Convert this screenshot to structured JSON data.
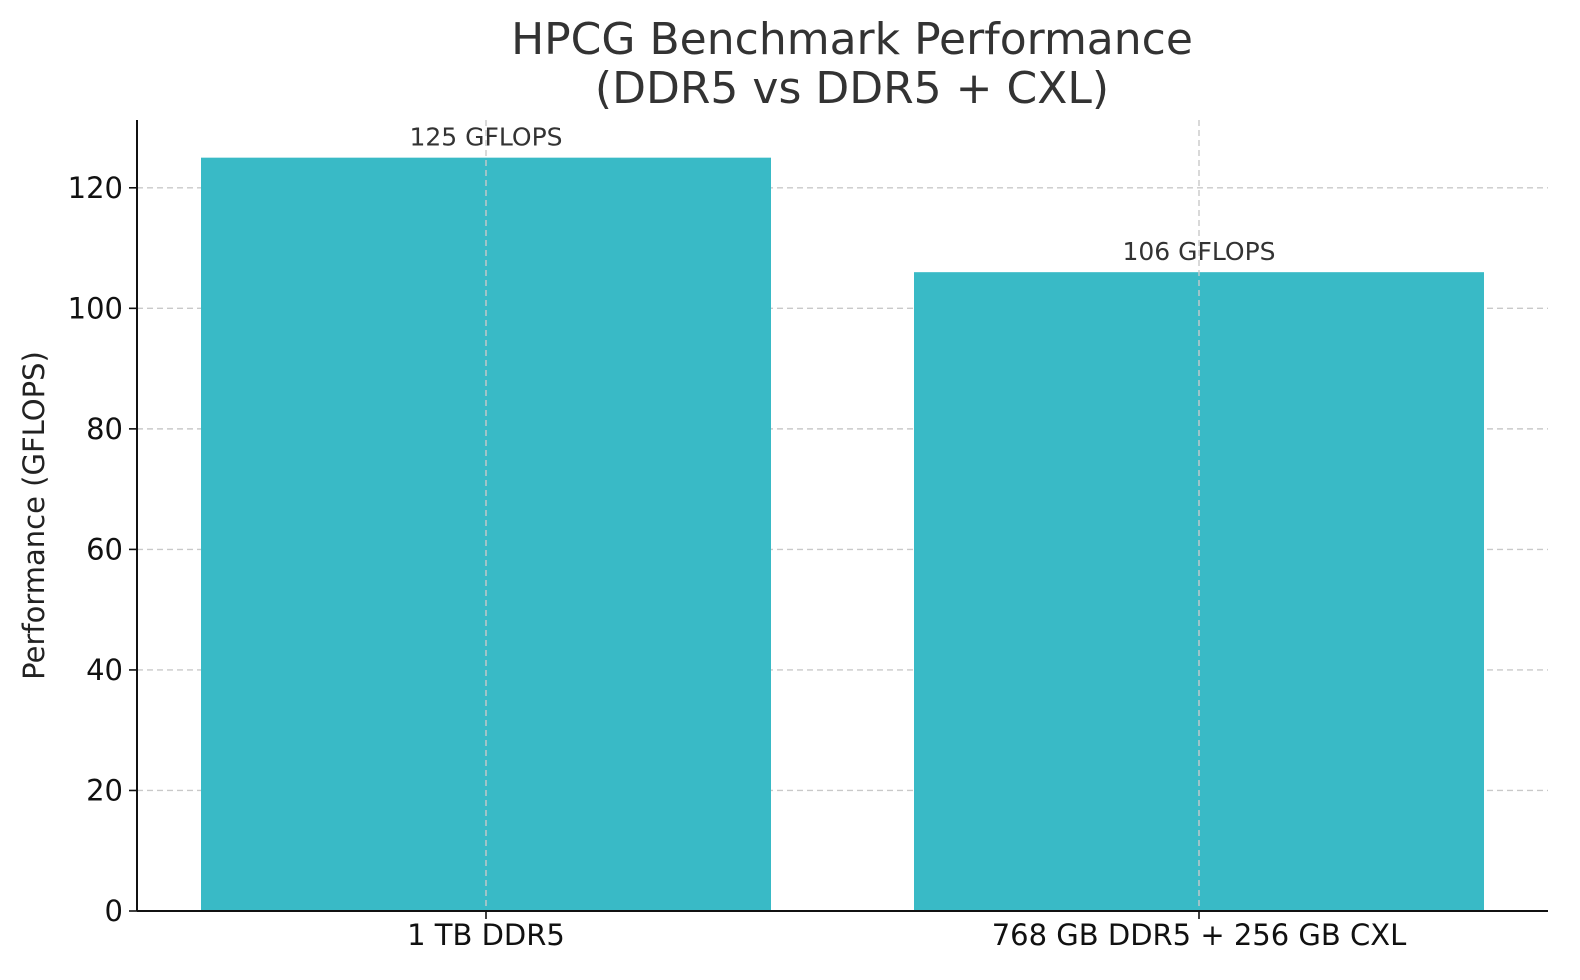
{
  "chart_data": {
    "type": "bar",
    "title_lines": [
      "HPCG Benchmark Performance",
      "(DDR5 vs DDR5 + CXL)"
    ],
    "categories": [
      "1 TB DDR5",
      "768 GB DDR5 + 256 GB CXL"
    ],
    "values": [
      125,
      106
    ],
    "data_labels": [
      "125 GFLOPS",
      "106 GFLOPS"
    ],
    "xlabel": "",
    "ylabel": "Performance (GFLOPS)",
    "ylim": [
      0,
      131.25
    ],
    "yticks": [
      0,
      20,
      40,
      60,
      80,
      100,
      120
    ],
    "grid": true,
    "bar_color": "#39BAC6"
  }
}
